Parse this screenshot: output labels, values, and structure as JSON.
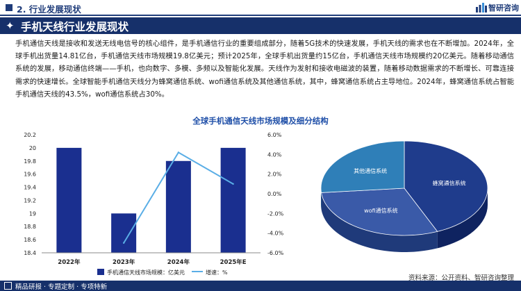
{
  "header": {
    "section": "2. 行业发展现状",
    "logo": "智研咨询"
  },
  "title_bar": {
    "title": "手机天线行业发展现状"
  },
  "paragraph": "手机通信天线是接收和发送无线电信号的核心组件，是手机通信行业的重要组成部分，随着5G技术的快速发展，手机天线的需求也在不断增加。2024年，全球手机出货量14.81亿台，手机通信天线市场规模19.8亿美元；预计2025年，全球手机出货量约15亿台，手机通信天线市场规模约20亿美元。随着移动通信系统的发展，移动通信终端——手机，也向数字、多模、多频以及智能化发展。天线作为发射和接收电磁波的装置，随着移动数据需求的不断增长、可靠连接需求的快速增长。全球智能手机通信天线分为蜂窝通信系统、wofi通信系统及其他通信系统，其中，蜂窝通信系统占主导地位。2024年，蜂窝通信系统占智能手机通信天线的43.5%，wofi通信系统占30%。",
  "footer": {
    "left": "精品研报 · 专题定制 · 专项特新",
    "source": "资料来源：公开资料、智研咨询整理"
  },
  "colors": {
    "navy": "#16306a",
    "bar": "#1a2f8f",
    "line": "#5aaee6",
    "pie_cellular": "#1f3c8c",
    "pie_wofi": "#3a5aa8",
    "pie_other": "#2f7fb8"
  },
  "chart_data": [
    {
      "type": "bar",
      "title": "全球手机通信天线市场规模及细分结构",
      "categories": [
        "2022年",
        "2023年",
        "2024年",
        "2025年E"
      ],
      "series": [
        {
          "name": "手机通信天线市场规模：亿美元",
          "type": "bar",
          "axis": "left",
          "values": [
            20.0,
            19.0,
            19.8,
            20.0
          ]
        },
        {
          "name": "增速：%",
          "type": "line",
          "axis": "right",
          "values": [
            null,
            -5.0,
            4.2,
            1.0
          ]
        }
      ],
      "y_left": {
        "ylim": [
          18.4,
          20.2
        ],
        "ticks": [
          "18.4",
          "18.6",
          "18.8",
          "19",
          "19.2",
          "19.4",
          "19.6",
          "19.8",
          "20",
          "20.2"
        ]
      },
      "y_right": {
        "ylim": [
          -6,
          6
        ],
        "ticks": [
          "6.0%",
          "4.0%",
          "2.0%",
          "0.0%",
          "-2.0%",
          "-4.0%",
          "-6.0%"
        ]
      },
      "legend": "bottom"
    },
    {
      "type": "pie",
      "labels": [
        "蜂窝通信系统",
        "wofi通信系统",
        "其他通信系统"
      ],
      "values": [
        43.5,
        30,
        26.5
      ]
    }
  ]
}
